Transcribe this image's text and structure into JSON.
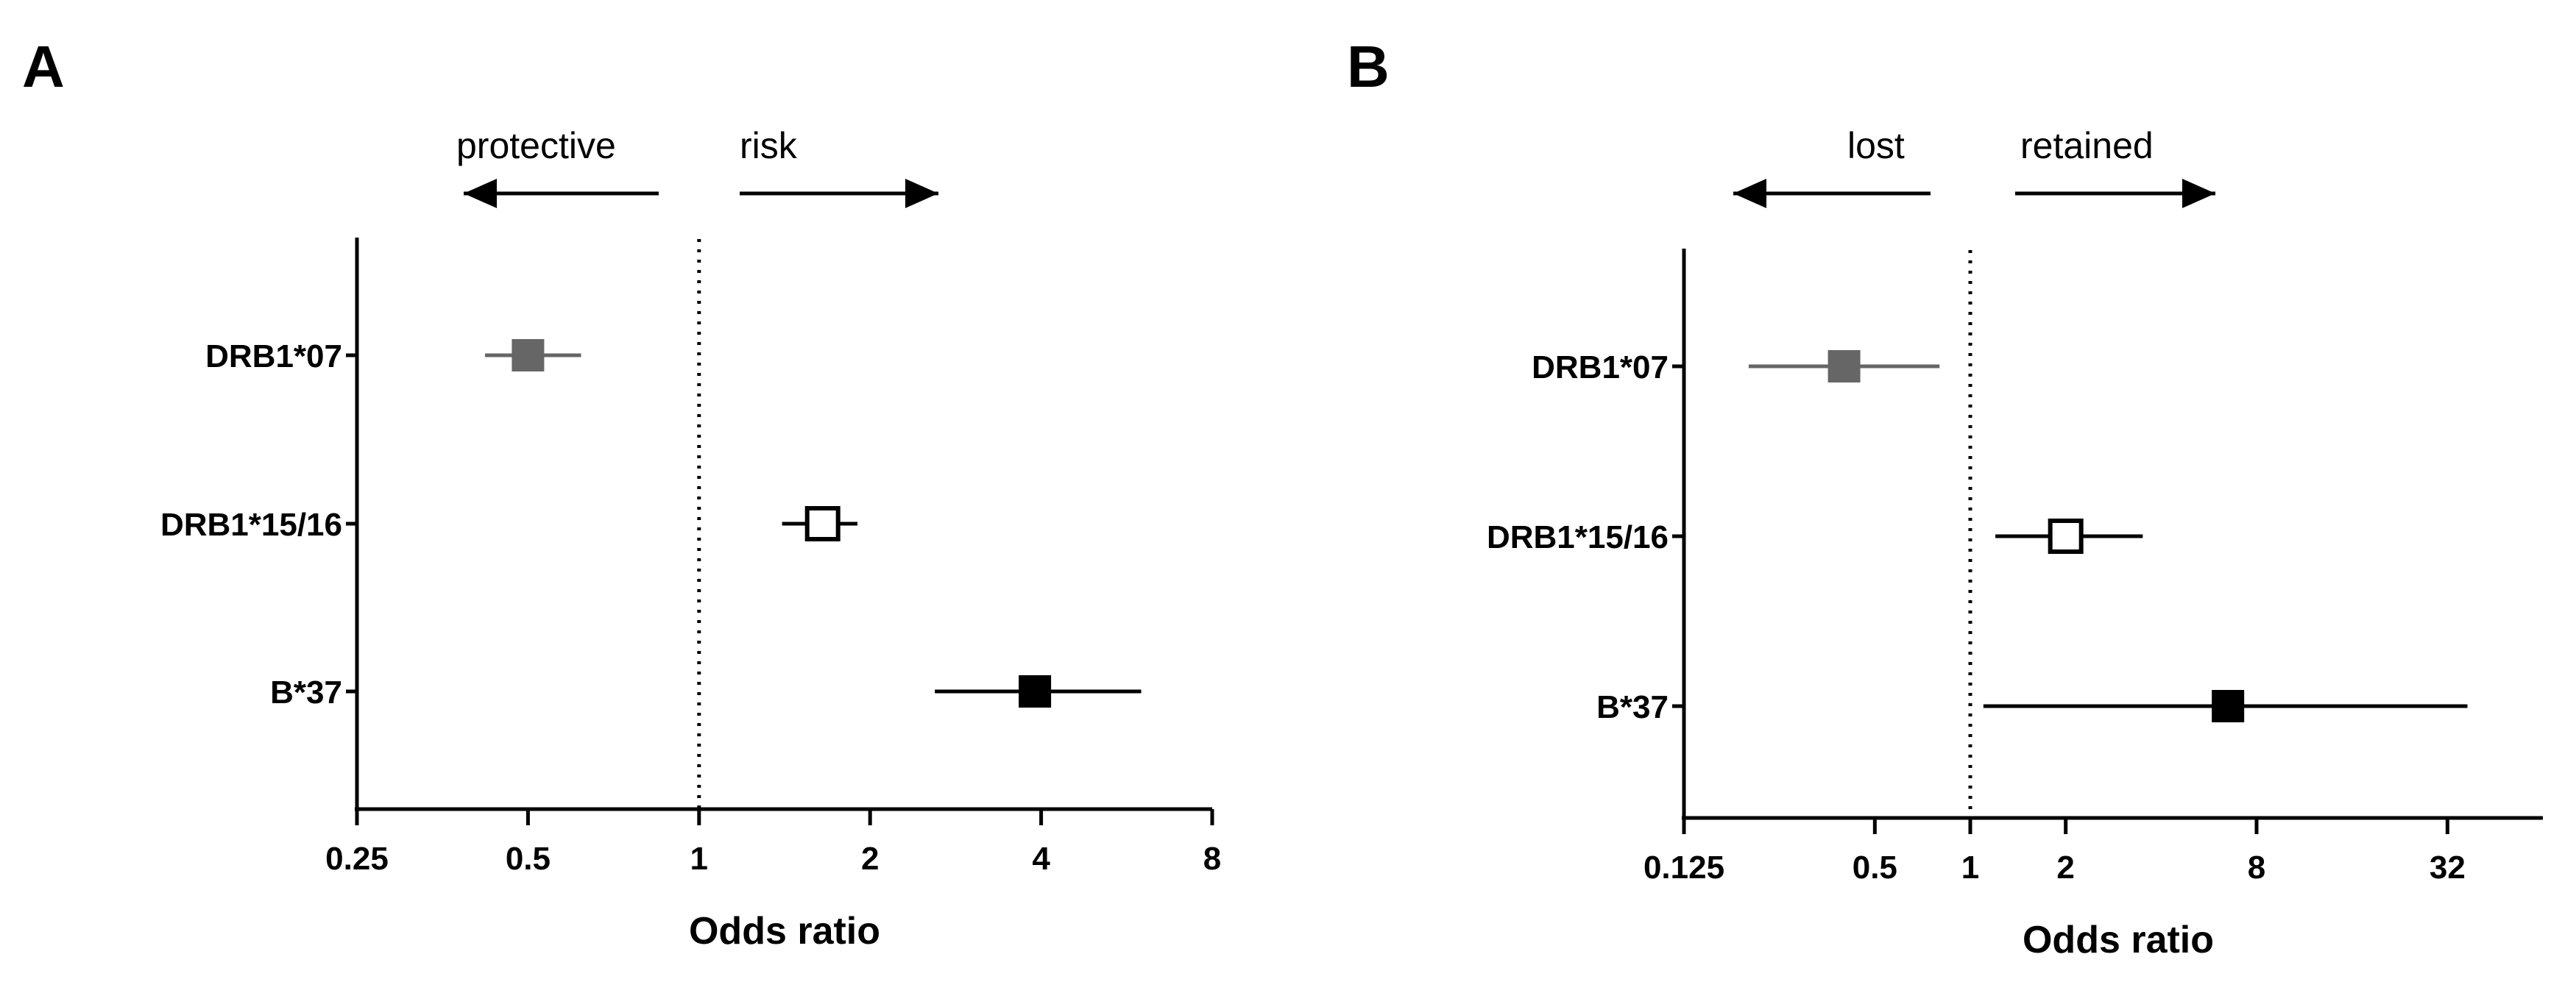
{
  "chart_data": [
    {
      "type": "forest",
      "panel": "A",
      "xlabel": "Odds ratio",
      "xscale": "log2",
      "xlim": [
        0.25,
        8
      ],
      "xticks": [
        "0.25",
        "0.5",
        "1",
        "2",
        "4",
        "8"
      ],
      "reference_line": 1,
      "direction_labels": {
        "left": "protective",
        "right": "risk"
      },
      "colors": {
        "DRB1*07": "#666666",
        "DRB1*15/16": "#ffffff",
        "B*37": "#000000"
      },
      "rows": [
        {
          "label": "DRB1*07",
          "estimate": 0.5,
          "ci_low": 0.42,
          "ci_high": 0.62,
          "marker": "filled-gray"
        },
        {
          "label": "DRB1*15/16",
          "estimate": 1.65,
          "ci_low": 1.4,
          "ci_high": 1.9,
          "marker": "open"
        },
        {
          "label": "B*37",
          "estimate": 3.9,
          "ci_low": 2.6,
          "ci_high": 6.0,
          "marker": "filled-black"
        }
      ]
    },
    {
      "type": "forest",
      "panel": "B",
      "xlabel": "Odds ratio",
      "xscale": "log2",
      "xlim": [
        0.125,
        64
      ],
      "xticks": [
        "0.125",
        "0.5",
        "1",
        "2",
        "8",
        "32"
      ],
      "reference_line": 1,
      "direction_labels": {
        "left": "lost",
        "right": "retained"
      },
      "colors": {
        "DRB1*07": "#666666",
        "DRB1*15/16": "#ffffff",
        "B*37": "#000000"
      },
      "rows": [
        {
          "label": "DRB1*07",
          "estimate": 0.4,
          "ci_low": 0.2,
          "ci_high": 0.8,
          "marker": "filled-gray"
        },
        {
          "label": "DRB1*15/16",
          "estimate": 2.0,
          "ci_low": 1.2,
          "ci_high": 3.5,
          "marker": "open"
        },
        {
          "label": "B*37",
          "estimate": 6.5,
          "ci_low": 1.1,
          "ci_high": 37,
          "marker": "filled-black"
        }
      ]
    }
  ]
}
